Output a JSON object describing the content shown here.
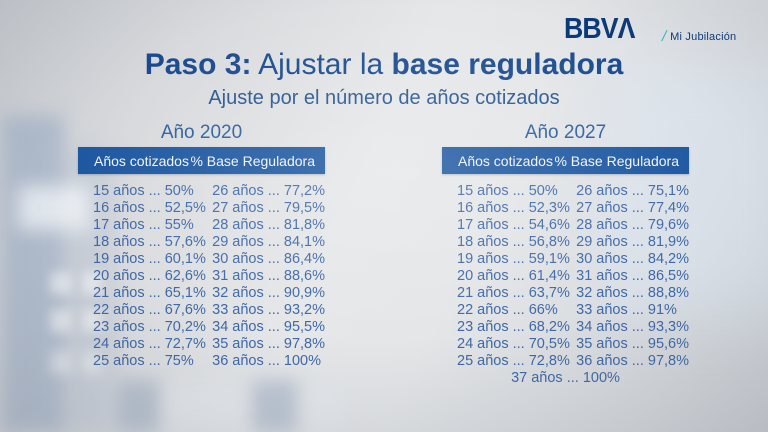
{
  "brand": {
    "logo": "BBVΛ",
    "slash": "/",
    "product": "Mi Jubilación"
  },
  "title": {
    "bold1": "Paso 3:",
    "regular": " Ajustar la ",
    "bold2": "base reguladora"
  },
  "subtitle": "Ajuste por el número de años cotizados",
  "tables": [
    {
      "year": "Año 2020",
      "headers": [
        "Años cotizados",
        "% Base Reguladora"
      ],
      "col_left": [
        "15 años ... 50%",
        "16 años ... 52,5%",
        "17 años ... 55%",
        "18 años ... 57,6%",
        "19 años ... 60,1%",
        "20 años ... 62,6%",
        "21 años ... 65,1%",
        "22 años ... 67,6%",
        "23 años ... 70,2%",
        "24 años ... 72,7%",
        "25 años ... 75%"
      ],
      "col_right": [
        "26 años ... 77,2%",
        "27 años ... 79,5%",
        "28 años ... 81,8%",
        "29 años ... 84,1%",
        "30 años ... 86,4%",
        "31 años ... 88,6%",
        "32 años ... 90,9%",
        "33 años ... 93,2%",
        "34 años ... 95,5%",
        "35 años ... 97,8%",
        "36 años ... 100%"
      ],
      "footer": ""
    },
    {
      "year": "Año 2027",
      "headers": [
        "Años cotizados",
        "% Base Reguladora"
      ],
      "col_left": [
        "15 años ... 50%",
        "16 años ... 52,3%",
        "17 años ... 54,6%",
        "18 años ... 56,8%",
        "19 años ... 59,1%",
        "20 años ... 61,4%",
        "21 años ... 63,7%",
        "22 años ... 66%",
        "23 años ... 68,2%",
        "24 años ... 70,5%",
        "25 años ... 72,8%"
      ],
      "col_right": [
        "26 años ... 75,1%",
        "27 años ... 77,4%",
        "28 años ... 79,6%",
        "29 años ... 81,9%",
        "30 años ... 84,2%",
        "31 años ... 86,5%",
        "32 años ... 88,8%",
        "33 años ... 91%",
        "34 años ... 93,3%",
        "35 años ... 95,6%",
        "36 años ... 97,8%"
      ],
      "footer": "37 años ... 100%"
    }
  ],
  "colors": {
    "header-bar": "#1d57a0",
    "header-text": "#f0f4f9",
    "row-text": "#3e68a6",
    "year-text": "#2c5d9c",
    "title-text": "#1b4b8e",
    "subtitle-text": "#28568f",
    "logo-navy": "#0b3a78",
    "aqua": "#38b6c9"
  }
}
